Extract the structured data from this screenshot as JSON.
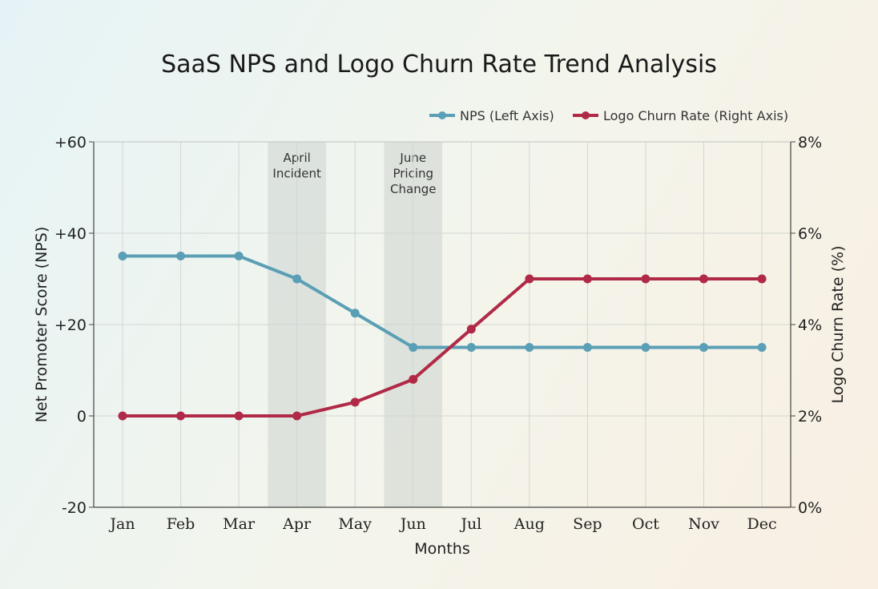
{
  "chart_data": {
    "type": "line",
    "title": "SaaS NPS and Logo Churn Rate Trend Analysis",
    "xlabel": "Months",
    "ylabel_left": "Net Promoter Score (NPS)",
    "ylabel_right": "Logo Churn Rate (%)",
    "categories": [
      "Jan",
      "Feb",
      "Mar",
      "Apr",
      "May",
      "Jun",
      "Jul",
      "Aug",
      "Sep",
      "Oct",
      "Nov",
      "Dec"
    ],
    "ylim_left": [
      -20,
      60
    ],
    "ylim_right": [
      0,
      8
    ],
    "yticks_left": [
      "-20",
      "0",
      "+20",
      "+40",
      "+60"
    ],
    "yticks_right": [
      "0%",
      "2%",
      "4%",
      "6%",
      "8%"
    ],
    "grid": true,
    "legend_position": "top-right",
    "series": [
      {
        "name": "NPS (Left Axis)",
        "axis": "left",
        "color": "#5a9fb5",
        "values": [
          35,
          35,
          35,
          30,
          22.5,
          15,
          15,
          15,
          15,
          15,
          15,
          15
        ]
      },
      {
        "name": "Logo Churn Rate (Right Axis)",
        "axis": "right",
        "color": "#b02a48",
        "values": [
          2,
          2,
          2,
          2,
          2.3,
          2.8,
          3.9,
          5,
          5,
          5,
          5,
          5
        ]
      }
    ],
    "annotations": [
      {
        "month": "Apr",
        "lines": [
          "April",
          "Incident"
        ]
      },
      {
        "month": "Jun",
        "lines": [
          "June",
          "Pricing",
          "Change"
        ]
      }
    ]
  }
}
